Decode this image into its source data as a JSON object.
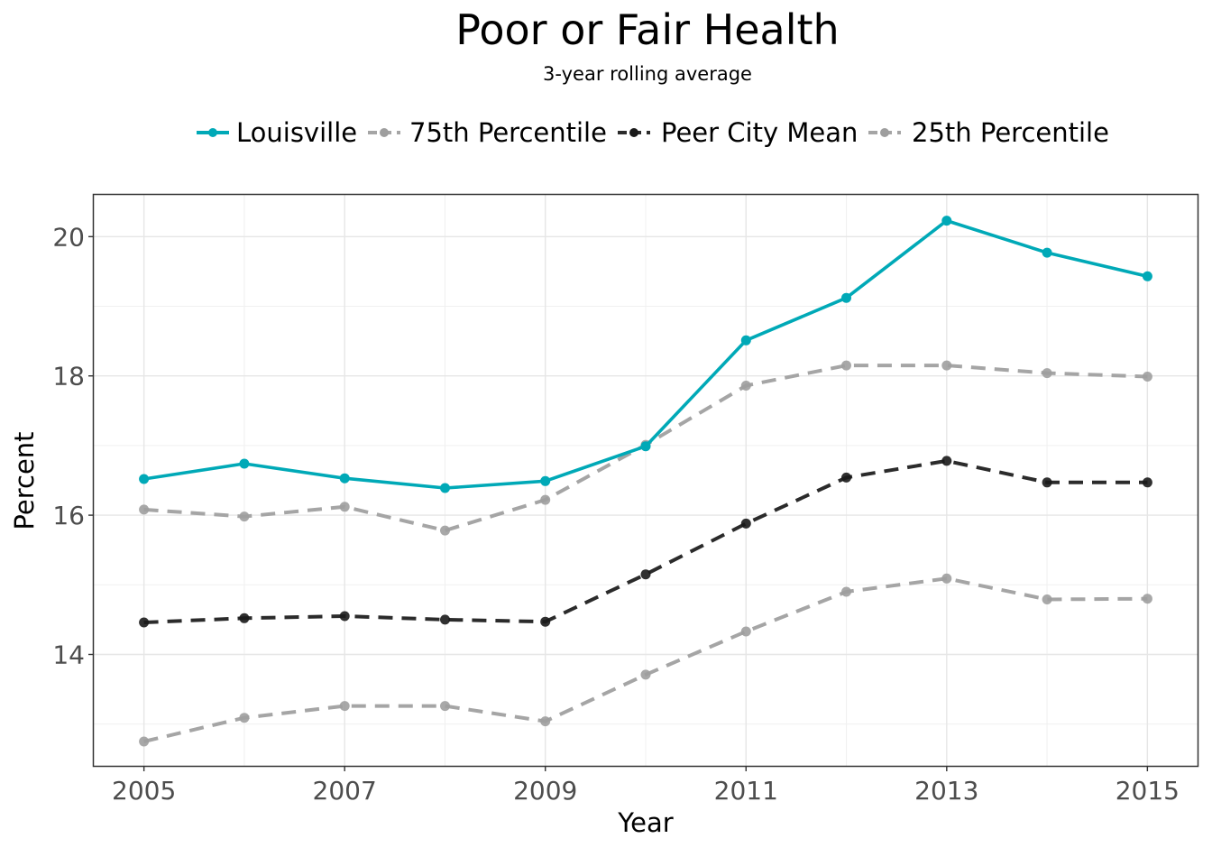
{
  "chart_data": {
    "type": "line",
    "title": "Poor or Fair Health",
    "subtitle": "3-year rolling average",
    "xlabel": "Year",
    "ylabel": "Percent",
    "x": [
      2005,
      2006,
      2007,
      2008,
      2009,
      2010,
      2011,
      2012,
      2013,
      2014,
      2015
    ],
    "xticks": [
      2005,
      2007,
      2009,
      2011,
      2013,
      2015
    ],
    "yticks": [
      14,
      16,
      18,
      20
    ],
    "xlim": [
      2004.5,
      2015.5
    ],
    "ylim": [
      12.4,
      20.6
    ],
    "grid": true,
    "legend_position": "top",
    "series": [
      {
        "name": "Louisville",
        "color": "#00a9b7",
        "style": "solid",
        "values": [
          16.52,
          16.74,
          16.53,
          16.39,
          16.49,
          16.99,
          18.51,
          19.12,
          20.23,
          19.77,
          19.43
        ]
      },
      {
        "name": "75th Percentile",
        "color": "#a5a5a5",
        "style": "dashed",
        "values": [
          16.08,
          15.98,
          16.12,
          15.78,
          16.22,
          17.01,
          17.86,
          18.15,
          18.15,
          18.04,
          17.99
        ]
      },
      {
        "name": "Peer City Mean",
        "color": "#2b2b2b",
        "style": "dashed",
        "values": [
          14.46,
          14.52,
          14.55,
          14.5,
          14.47,
          15.15,
          15.88,
          16.54,
          16.78,
          16.47,
          16.47
        ]
      },
      {
        "name": "25th Percentile",
        "color": "#a5a5a5",
        "style": "dashed",
        "values": [
          12.75,
          13.09,
          13.26,
          13.26,
          13.04,
          13.71,
          14.33,
          14.9,
          15.09,
          14.79,
          14.8
        ]
      }
    ]
  }
}
